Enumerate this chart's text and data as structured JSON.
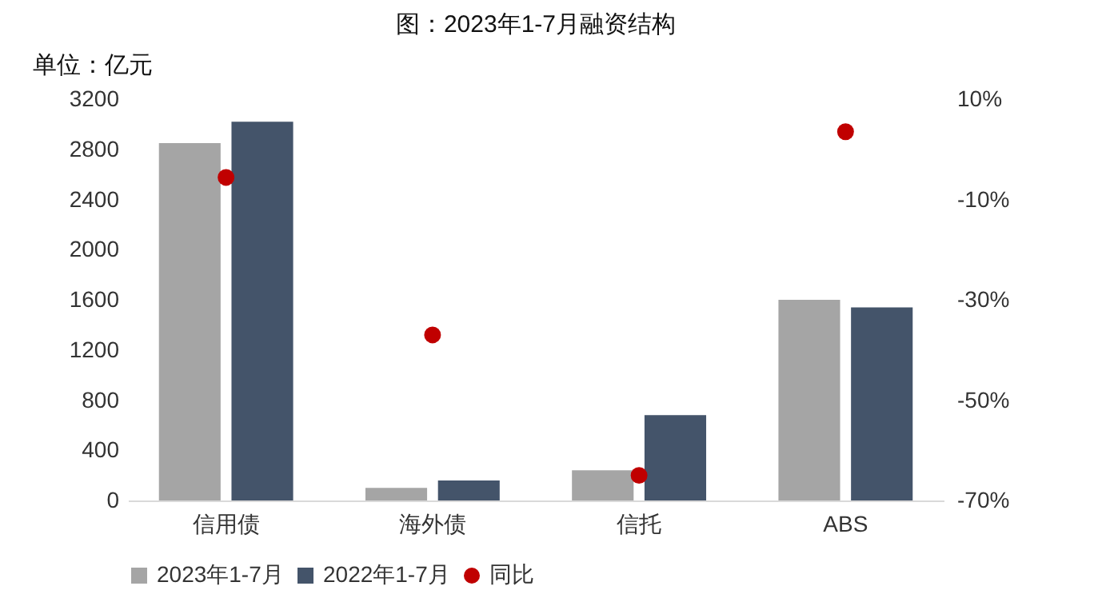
{
  "chart_data": {
    "type": "bar",
    "title": "图：2023年1-7月融资结构",
    "ylabel": "单位：亿元",
    "categories": [
      "信用债",
      "海外债",
      "信托",
      "ABS"
    ],
    "series": [
      {
        "name": "2023年1-7月",
        "color": "#a5a5a5",
        "values": [
          2850,
          100,
          240,
          1600
        ]
      },
      {
        "name": "2022年1-7月",
        "color": "#44546a",
        "values": [
          3020,
          160,
          680,
          1540
        ]
      },
      {
        "name": "同比",
        "type": "scatter",
        "axis": "y2",
        "color": "#c00000",
        "values": [
          -5.6,
          -37,
          -65,
          3.5
        ]
      }
    ],
    "ylim": [
      0,
      3200
    ],
    "yticks": [
      0,
      400,
      800,
      1200,
      1600,
      2000,
      2400,
      2800,
      3200
    ],
    "y2lim": [
      -70,
      10
    ],
    "y2ticks": [
      {
        "value": -70,
        "label": "-70%"
      },
      {
        "value": -50,
        "label": "-50%"
      },
      {
        "value": -30,
        "label": "-30%"
      },
      {
        "value": -10,
        "label": "-10%"
      },
      {
        "value": 10,
        "label": "10%"
      }
    ],
    "grid": false,
    "legend": "bottom",
    "marker": "circle"
  }
}
